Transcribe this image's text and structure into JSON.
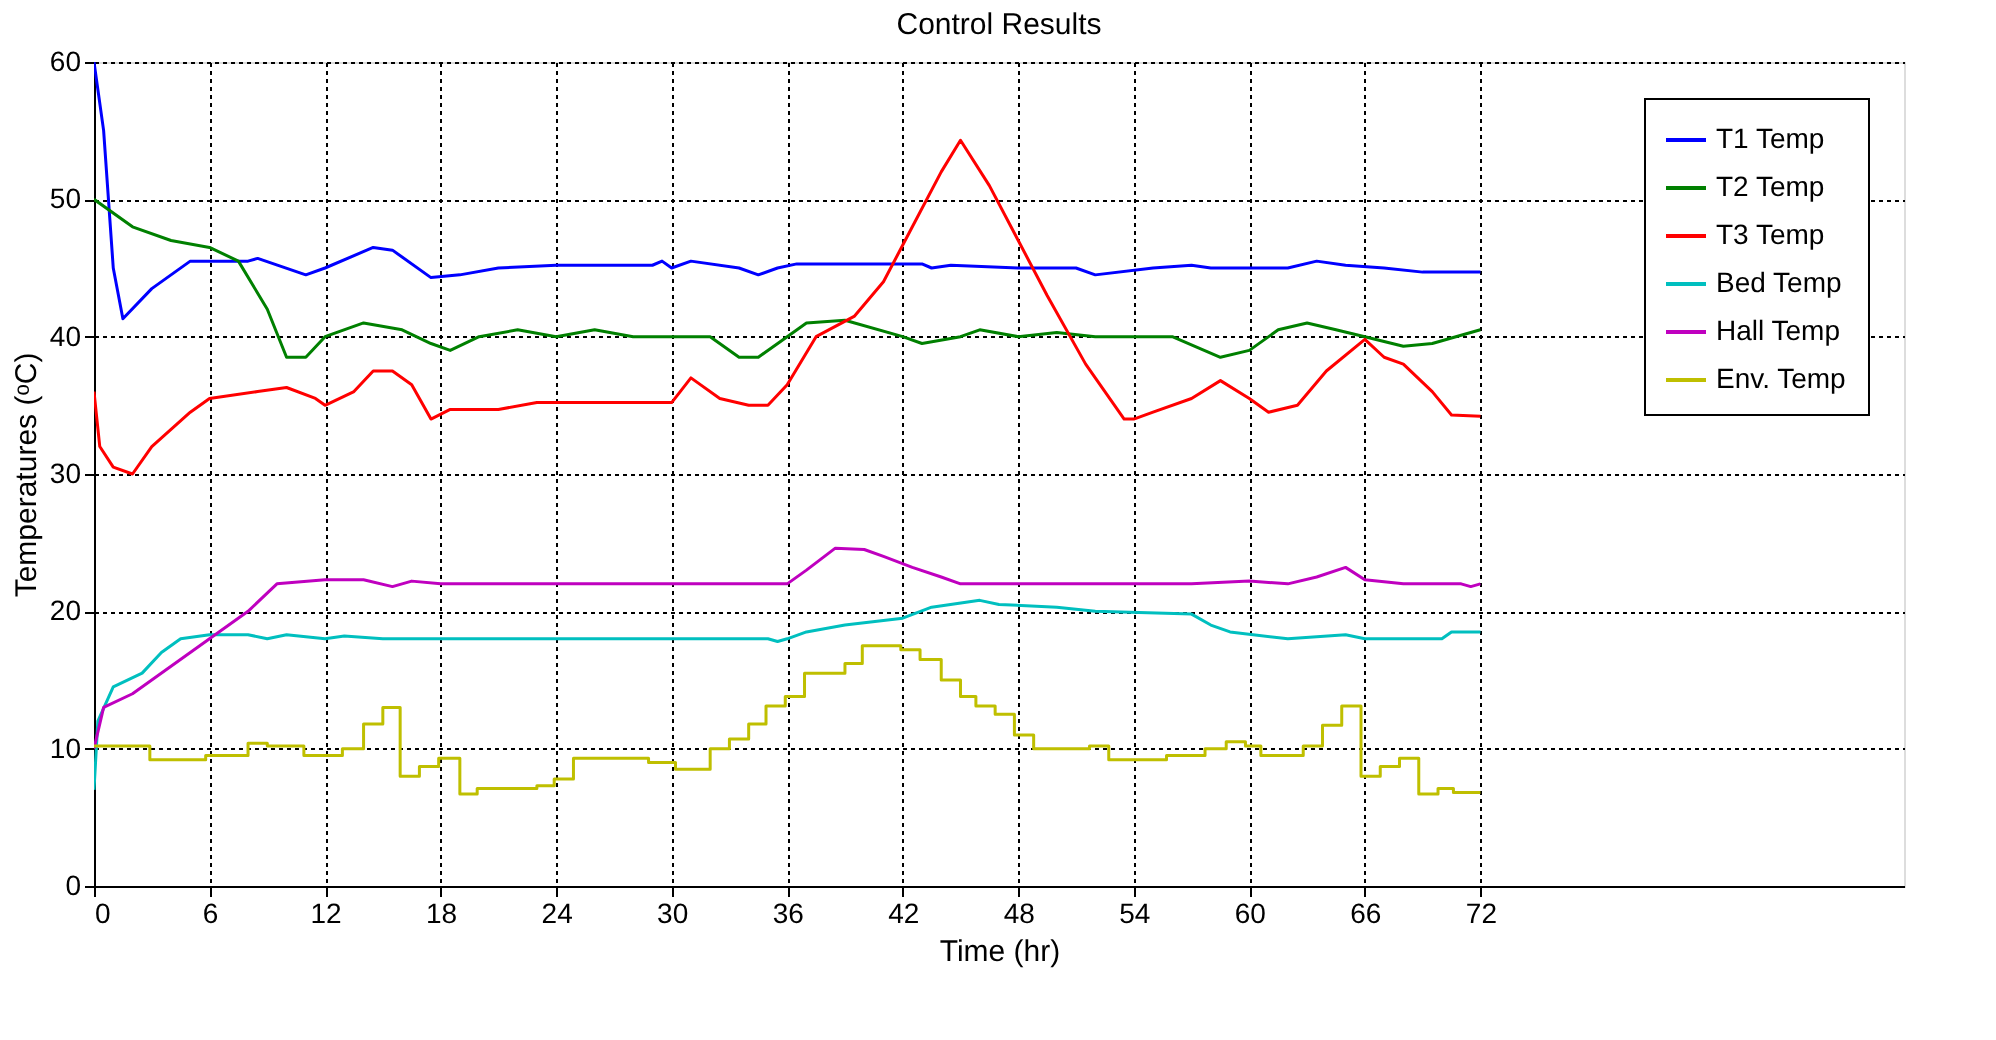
{
  "chart_data": {
    "type": "line",
    "title": "Control Results",
    "xlabel": "Time (hr)",
    "ylabel": "Temperatures (ᵒC)",
    "xlim": [
      0,
      94
    ],
    "xticks": [
      0,
      6,
      12,
      18,
      24,
      30,
      36,
      42,
      48,
      54,
      60,
      66,
      72
    ],
    "ylim": [
      0,
      60
    ],
    "yticks": [
      0,
      10,
      20,
      30,
      40,
      50,
      60
    ],
    "grid": true,
    "legend": "top right",
    "marker": "none",
    "line_style": "solid",
    "series": [
      {
        "name": "T1 Temp",
        "color": "#0000ff",
        "x": [
          0,
          0.5,
          1,
          1.5,
          3,
          5,
          8,
          8.5,
          11,
          12,
          14.5,
          15.5,
          17.5,
          19,
          21,
          24,
          29,
          29.5,
          30,
          31,
          33.5,
          34.5,
          35.5,
          36.5,
          43,
          43.5,
          44.5,
          48,
          51,
          52,
          55,
          57,
          58,
          62,
          63.5,
          65,
          67,
          69,
          72
        ],
        "values": [
          60,
          55,
          45,
          41.3,
          43.5,
          45.5,
          45.5,
          45.7,
          44.5,
          45,
          46.5,
          46.3,
          44.3,
          44.5,
          45,
          45.2,
          45.2,
          45.5,
          45,
          45.5,
          45,
          44.5,
          45,
          45.3,
          45.3,
          45,
          45.2,
          45,
          45,
          44.5,
          45,
          45.2,
          45,
          45,
          45.5,
          45.2,
          45,
          44.7,
          44.7
        ]
      },
      {
        "name": "T2 Temp",
        "color": "#008000",
        "x": [
          0,
          2,
          4,
          6,
          7.5,
          9,
          10,
          11,
          12,
          14,
          16,
          17.5,
          18.5,
          20,
          22,
          24,
          26,
          28,
          32,
          33.5,
          34.5,
          36,
          37,
          39,
          42,
          43,
          45,
          46,
          48,
          50,
          52,
          56,
          58.5,
          60,
          61.5,
          63,
          64.5,
          66,
          68,
          69.5,
          72
        ],
        "values": [
          50,
          48,
          47,
          46.5,
          45.5,
          42,
          38.5,
          38.5,
          40,
          41,
          40.5,
          39.5,
          39,
          40,
          40.5,
          40,
          40.5,
          40,
          40,
          38.5,
          38.5,
          40,
          41,
          41.2,
          40,
          39.5,
          40,
          40.5,
          40,
          40.3,
          40,
          40,
          38.5,
          39,
          40.5,
          41,
          40.5,
          40,
          39.3,
          39.5,
          40.5
        ]
      },
      {
        "name": "T3 Temp",
        "color": "#ff0000",
        "x": [
          0,
          0.3,
          1,
          2,
          3,
          5,
          6,
          8.5,
          10,
          11.5,
          12,
          13.5,
          14.5,
          15.5,
          16.5,
          17.5,
          18.5,
          21,
          23,
          30,
          31,
          32.5,
          34,
          35,
          36,
          37.5,
          39.5,
          41,
          42.5,
          44,
          45,
          46.5,
          48,
          49.5,
          51.5,
          53.5,
          54,
          55,
          57,
          58.5,
          60,
          61,
          62.5,
          64,
          66,
          67,
          68,
          69.5,
          70.5,
          72
        ],
        "values": [
          36,
          32,
          30.5,
          30,
          32,
          34.5,
          35.5,
          36,
          36.3,
          35.5,
          35,
          36,
          37.5,
          37.5,
          36.5,
          34,
          34.7,
          34.7,
          35.2,
          35.2,
          37,
          35.5,
          35,
          35,
          36.5,
          40,
          41.5,
          44,
          48,
          52,
          54.3,
          51,
          47,
          43,
          38,
          34,
          34,
          34.5,
          35.5,
          36.8,
          35.5,
          34.5,
          35,
          37.5,
          39.8,
          38.5,
          38,
          36,
          34.3,
          34.2
        ]
      },
      {
        "name": "Bed Temp",
        "color": "#00bfbf",
        "x": [
          0,
          0.2,
          1,
          2.5,
          3.5,
          4.5,
          6,
          8,
          9,
          10,
          12,
          13,
          15,
          35,
          35.5,
          36,
          37,
          39,
          42,
          43.5,
          46,
          47,
          50,
          52,
          57,
          58,
          59,
          62,
          65,
          66,
          70,
          70.5,
          72
        ],
        "values": [
          7,
          12,
          14.5,
          15.5,
          17,
          18,
          18.3,
          18.3,
          18,
          18.3,
          18,
          18.2,
          18,
          18,
          17.8,
          18,
          18.5,
          19,
          19.5,
          20.3,
          20.8,
          20.5,
          20.3,
          20,
          19.8,
          19,
          18.5,
          18,
          18.3,
          18,
          18,
          18.5,
          18.5
        ]
      },
      {
        "name": "Hall Temp",
        "color": "#bf00bf",
        "x": [
          0,
          0.5,
          2,
          4,
          6,
          8,
          9.5,
          12,
          14,
          15.5,
          16.5,
          18,
          36,
          37,
          38.5,
          40,
          41,
          42.5,
          44,
          45,
          57,
          60,
          62,
          63.5,
          65,
          66,
          68,
          71,
          71.5,
          72
        ],
        "values": [
          10,
          13,
          14,
          16,
          18,
          20,
          22,
          22.3,
          22.3,
          21.8,
          22.2,
          22,
          22,
          23,
          24.6,
          24.5,
          24,
          23.2,
          22.5,
          22,
          22,
          22.2,
          22,
          22.5,
          23.2,
          22.3,
          22,
          22,
          21.8,
          22
        ]
      },
      {
        "name": "Env. Temp",
        "type": "step",
        "color": "#bfbf00",
        "x": [
          0,
          2.9,
          5.8,
          8,
          9,
          10.9,
          12.9,
          14,
          15,
          15.9,
          16.9,
          17.9,
          19,
          19.9,
          23,
          23.9,
          24.9,
          28.8,
          30.2,
          32,
          33,
          34,
          34.9,
          35.9,
          36.9,
          39,
          39.9,
          41.9,
          42.9,
          44,
          45,
          45.8,
          46.8,
          47.8,
          48.8,
          51.7,
          52.7,
          55.7,
          57.7,
          58.8,
          59.8,
          60.6,
          62.8,
          63.8,
          64.8,
          65.8,
          66.8,
          67.8,
          68.8,
          69.8,
          70.6,
          72
        ],
        "values": [
          10.2,
          9.2,
          9.5,
          10.4,
          10.2,
          9.5,
          10,
          11.8,
          13,
          8,
          8.7,
          9.3,
          6.7,
          7.1,
          7.3,
          7.8,
          9.3,
          9,
          8.5,
          10,
          10.7,
          11.8,
          13.1,
          13.8,
          15.5,
          16.2,
          17.5,
          17.2,
          16.5,
          15,
          13.8,
          13.1,
          12.5,
          11,
          10,
          10.2,
          9.2,
          9.5,
          10,
          10.5,
          10.2,
          9.5,
          10.2,
          11.7,
          13.1,
          8,
          8.7,
          9.3,
          6.7,
          7.1,
          6.8,
          6.8
        ]
      }
    ]
  }
}
